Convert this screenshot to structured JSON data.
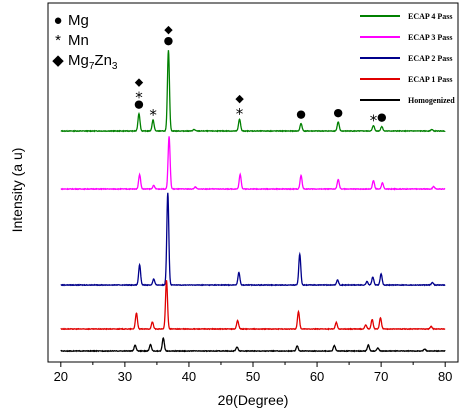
{
  "chart_data": {
    "type": "line",
    "xlabel": "2θ(Degree)",
    "ylabel": "Intensity (a u)",
    "xlim": [
      18,
      82
    ],
    "xticks": [
      "20",
      "30",
      "40",
      "50",
      "60",
      "70",
      "80"
    ],
    "grid": false,
    "legend_position": "top-right",
    "series": [
      {
        "name": "ECAP 4 Pass",
        "color": "#008000",
        "baseline": 4,
        "peaks": [
          [
            32.2,
            0.35
          ],
          [
            34.4,
            0.22
          ],
          [
            36.8,
            1.62
          ],
          [
            40.8,
            0.03
          ],
          [
            47.9,
            0.24
          ],
          [
            57.5,
            0.15
          ],
          [
            63.3,
            0.18
          ],
          [
            68.8,
            0.11
          ],
          [
            70.1,
            0.09
          ],
          [
            77.9,
            0.03
          ]
        ]
      },
      {
        "name": "ECAP 3 Pass",
        "color": "#ff00ff",
        "baseline": 3,
        "peaks": [
          [
            32.3,
            0.29
          ],
          [
            34.5,
            0.07
          ],
          [
            36.9,
            1.05
          ],
          [
            41.0,
            0.04
          ],
          [
            48.0,
            0.29
          ],
          [
            57.5,
            0.27
          ],
          [
            63.3,
            0.19
          ],
          [
            68.8,
            0.17
          ],
          [
            70.2,
            0.12
          ],
          [
            78.2,
            0.05
          ]
        ]
      },
      {
        "name": "ECAP 2 Pass",
        "color": "#00008b",
        "baseline": 2,
        "peaks": [
          [
            32.3,
            0.4
          ],
          [
            34.5,
            0.12
          ],
          [
            36.7,
            1.85
          ],
          [
            47.8,
            0.25
          ],
          [
            57.3,
            0.62
          ],
          [
            63.2,
            0.1
          ],
          [
            67.8,
            0.07
          ],
          [
            68.7,
            0.16
          ],
          [
            70.0,
            0.22
          ],
          [
            78.0,
            0.05
          ]
        ]
      },
      {
        "name": "ECAP 1 Pass",
        "color": "#e00000",
        "baseline": 1,
        "peaks": [
          [
            31.8,
            0.32
          ],
          [
            34.3,
            0.14
          ],
          [
            36.5,
            0.97
          ],
          [
            47.6,
            0.17
          ],
          [
            57.1,
            0.35
          ],
          [
            63.0,
            0.13
          ],
          [
            67.6,
            0.08
          ],
          [
            68.6,
            0.19
          ],
          [
            69.9,
            0.22
          ],
          [
            77.8,
            0.05
          ]
        ]
      },
      {
        "name": "Homogenized",
        "color": "#000000",
        "baseline": 0,
        "peaks": [
          [
            31.6,
            0.12
          ],
          [
            34.0,
            0.13
          ],
          [
            36.0,
            0.26
          ],
          [
            47.5,
            0.08
          ],
          [
            56.9,
            0.1
          ],
          [
            62.7,
            0.11
          ],
          [
            68.0,
            0.12
          ],
          [
            69.5,
            0.06
          ],
          [
            76.8,
            0.04
          ]
        ]
      }
    ],
    "phase_key": [
      {
        "symbol": "●",
        "label": "Mg",
        "label_sub": "",
        "label_tail": ""
      },
      {
        "symbol": "*",
        "label": "Mn",
        "label_sub": "",
        "label_tail": ""
      },
      {
        "symbol": "◆",
        "label": "Mg",
        "label_sub": "7",
        "label_tail": "Zn",
        "label_sub2": "3"
      }
    ],
    "annotations": [
      {
        "x": 32.2,
        "stack": [
          "◆",
          "*",
          "●"
        ]
      },
      {
        "x": 34.4,
        "stack": [
          "*"
        ]
      },
      {
        "x": 36.8,
        "stack": [
          "◆",
          "●"
        ]
      },
      {
        "x": 47.9,
        "stack": [
          "◆",
          "*"
        ]
      },
      {
        "x": 57.5,
        "stack": [
          "●"
        ]
      },
      {
        "x": 63.3,
        "stack": [
          "●"
        ]
      },
      {
        "x": 68.8,
        "stack": [
          "*"
        ]
      },
      {
        "x": 70.1,
        "stack": [
          "●"
        ]
      }
    ]
  }
}
